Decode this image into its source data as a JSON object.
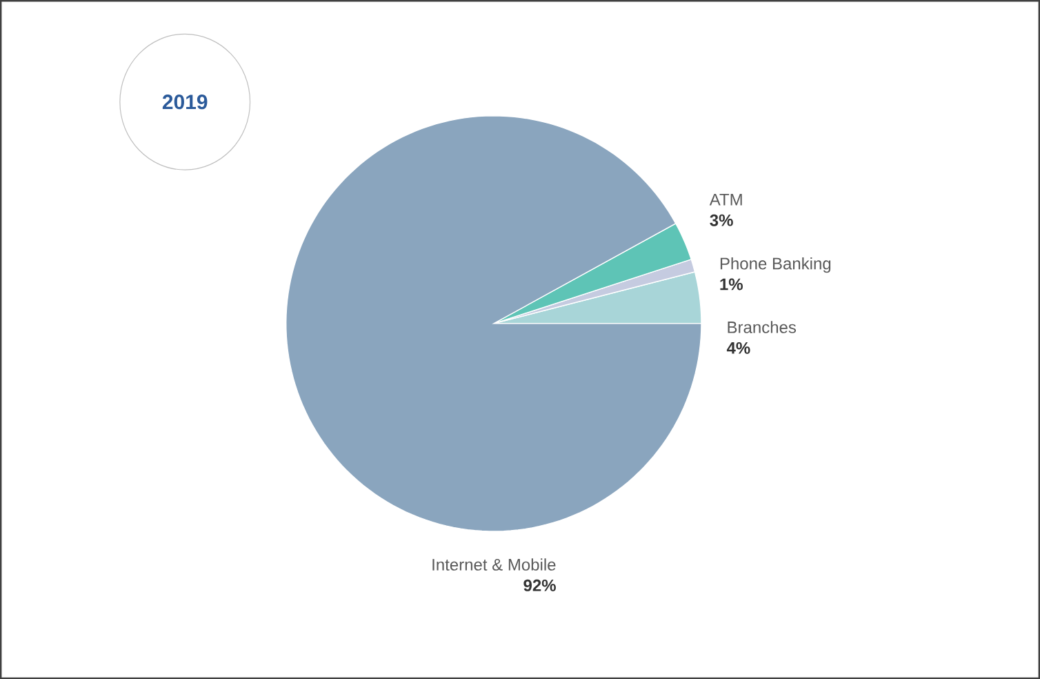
{
  "chart_data": {
    "type": "pie",
    "title": "2019",
    "categories": [
      "Branches",
      "Phone Banking",
      "ATM",
      "Internet & Mobile"
    ],
    "values": [
      4,
      1,
      3,
      92
    ],
    "colors": [
      "#a8d5d8",
      "#c5cbe0",
      "#5ec4b6",
      "#8aa5be"
    ],
    "value_labels": [
      "4%",
      "1%",
      "3%",
      "92%"
    ]
  }
}
